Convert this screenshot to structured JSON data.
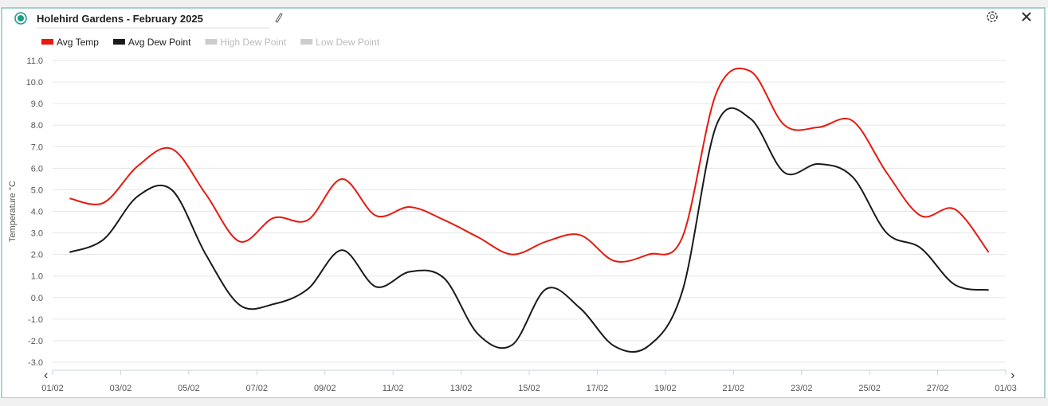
{
  "chart_data": {
    "type": "line",
    "title": "Holehird Gardens - February 2025",
    "y_label": "Temperature °C",
    "x_labels": [
      "01/02",
      "03/02",
      "05/02",
      "07/02",
      "09/02",
      "11/02",
      "13/02",
      "15/02",
      "17/02",
      "19/02",
      "21/02",
      "23/02",
      "25/02",
      "27/02",
      "01/03"
    ],
    "series": [
      {
        "name": "Avg Temp",
        "color": "#e8190e",
        "values": [
          4.6,
          4.4,
          6.1,
          6.9,
          4.8,
          2.6,
          3.7,
          3.6,
          5.5,
          3.8,
          4.2,
          3.6,
          2.8,
          2.0,
          2.6,
          2.9,
          1.7,
          2.0,
          2.8,
          9.5,
          10.5,
          8.0,
          7.9,
          8.2,
          5.8,
          3.8,
          4.1,
          2.1
        ]
      },
      {
        "name": "Avg Dew Point",
        "color": "#1a1a1a",
        "values": [
          2.1,
          2.7,
          4.7,
          5.0,
          2.0,
          -0.35,
          -0.3,
          0.4,
          2.2,
          0.5,
          1.2,
          0.9,
          -1.7,
          -2.2,
          0.4,
          -0.5,
          -2.25,
          -2.25,
          0.3,
          8.0,
          8.3,
          5.8,
          6.2,
          5.6,
          3.0,
          2.3,
          0.6,
          0.35
        ]
      }
    ],
    "hidden_series": [
      "High Dew Point",
      "Low Dew Point"
    ],
    "hidden_color": "#cccccc",
    "ylim": [
      -3,
      11
    ],
    "yticks": [
      {
        "value": -3,
        "label": "-3.0"
      },
      {
        "value": -2,
        "label": "-2.0"
      },
      {
        "value": -1,
        "label": "-1.0"
      },
      {
        "value": 0,
        "label": "0.0"
      },
      {
        "value": 1,
        "label": "1.0"
      },
      {
        "value": 2,
        "label": "2.0"
      },
      {
        "value": 3,
        "label": "3.0"
      },
      {
        "value": 4,
        "label": "4.0"
      },
      {
        "value": 5,
        "label": "5.0"
      },
      {
        "value": 6,
        "label": "6.0"
      },
      {
        "value": 7,
        "label": "7.0"
      },
      {
        "value": 8,
        "label": "8.0"
      },
      {
        "value": 9,
        "label": "9.0"
      },
      {
        "value": 10,
        "label": "10.0"
      },
      {
        "value": 11,
        "label": "11.0"
      }
    ],
    "grid": true
  }
}
